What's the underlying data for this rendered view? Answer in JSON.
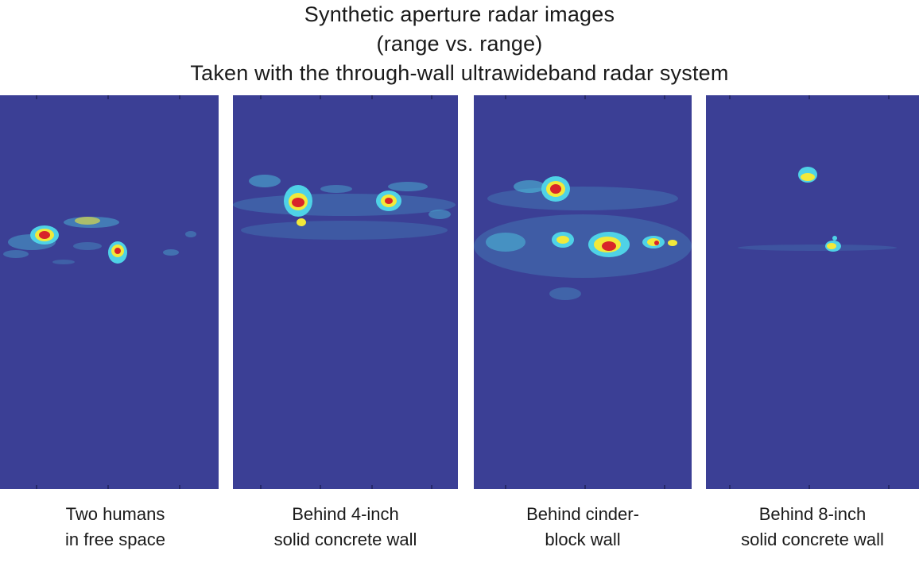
{
  "title": {
    "line1": "Synthetic aperture radar images",
    "line2": "(range vs. range)",
    "line3": "Taken with the through-wall ultrawideband radar system"
  },
  "panels": [
    {
      "caption_line1": "Two humans",
      "caption_line2": "in free space"
    },
    {
      "caption_line1": "Behind 4-inch",
      "caption_line2": "solid concrete wall"
    },
    {
      "caption_line1": "Behind cinder-",
      "caption_line2": "block wall"
    },
    {
      "caption_line1": "Behind 8-inch",
      "caption_line2": "solid concrete wall"
    }
  ],
  "colors": {
    "background": "#3b3f95",
    "cyan": "#4fd2e6",
    "yellow": "#f2e93a",
    "red": "#d8242a"
  }
}
